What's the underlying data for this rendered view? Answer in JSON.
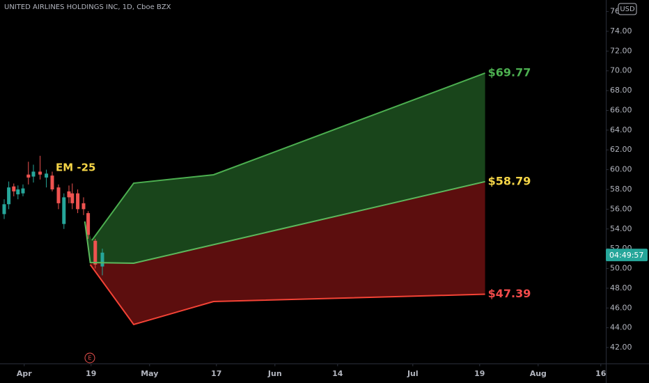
{
  "chart_data": {
    "type": "candlestick",
    "title": "UNITED AIRLINES HOLDINGS INC, 1D, Cboe BZX",
    "currency": "USD",
    "annotation": "EM -25",
    "annotation_color": "#f5d547",
    "countdown": "04:49:57",
    "last_price": 51.37,
    "event": {
      "x": 15.7,
      "label": "E"
    },
    "ylim": [
      40.38,
      77.17
    ],
    "yticks": [
      {
        "value": 42,
        "label": "42.00"
      },
      {
        "value": 44,
        "label": "44.00"
      },
      {
        "value": 46,
        "label": "46.00"
      },
      {
        "value": 48,
        "label": "48.00"
      },
      {
        "value": 50,
        "label": "50.00"
      },
      {
        "value": 52,
        "label": "52.00"
      },
      {
        "value": 54,
        "label": "54.00"
      },
      {
        "value": 56,
        "label": "56.00"
      },
      {
        "value": 58,
        "label": "58.00"
      },
      {
        "value": 60,
        "label": "60.00"
      },
      {
        "value": 62,
        "label": "62.00"
      },
      {
        "value": 64,
        "label": "64.00"
      },
      {
        "value": 66,
        "label": "66.00"
      },
      {
        "value": 68,
        "label": "68.00"
      },
      {
        "value": 70,
        "label": "70.00"
      },
      {
        "value": 72,
        "label": "72.00"
      },
      {
        "value": 74,
        "label": "74.00"
      },
      {
        "value": 76,
        "label": "76.00"
      }
    ],
    "xlim": [
      -5.8,
      139.2
    ],
    "xticks": [
      {
        "value": 0,
        "label": "Apr"
      },
      {
        "value": 16,
        "label": "19"
      },
      {
        "value": 30,
        "label": "May"
      },
      {
        "value": 46,
        "label": "17"
      },
      {
        "value": 60,
        "label": "Jun"
      },
      {
        "value": 75,
        "label": "14"
      },
      {
        "value": 93,
        "label": "Jul"
      },
      {
        "value": 109,
        "label": "19"
      },
      {
        "value": 123,
        "label": "Aug"
      },
      {
        "value": 138,
        "label": "16"
      }
    ],
    "candles": {
      "up_color": "#26a69a",
      "down_color": "#ef5350",
      "x": [
        -4.8,
        -3.7,
        -2.5,
        -1.5,
        -0.3,
        1.0,
        2.2,
        3.8,
        5.3,
        6.7,
        8.2,
        9.5,
        10.7,
        11.5,
        12.8,
        14.2,
        15.3,
        17.0,
        18.7
      ],
      "open": [
        55.5,
        56.5,
        58.3,
        57.5,
        57.6,
        59.5,
        59.3,
        59.8,
        59.2,
        59.4,
        58.2,
        54.5,
        57.8,
        57.6,
        57.6,
        56.6,
        55.6,
        52.8,
        50.2
      ],
      "high": [
        57.0,
        58.8,
        58.6,
        58.4,
        58.5,
        60.8,
        60.5,
        61.4,
        60.0,
        59.8,
        58.5,
        57.6,
        58.4,
        58.6,
        58.0,
        57.2,
        55.8,
        53.0,
        52.0
      ],
      "low": [
        55.0,
        56.0,
        57.3,
        57.0,
        57.3,
        58.5,
        58.7,
        59.0,
        58.2,
        57.8,
        56.0,
        54.0,
        56.6,
        56.0,
        55.6,
        55.4,
        53.0,
        50.0,
        49.3
      ],
      "close": [
        56.5,
        58.2,
        57.8,
        58.0,
        58.1,
        59.2,
        59.8,
        59.5,
        59.6,
        58.0,
        56.6,
        57.2,
        57.2,
        56.6,
        56.0,
        56.0,
        53.4,
        50.4,
        51.6
      ]
    },
    "series": [
      {
        "color": "#4caf50",
        "fill": "rgba(46,125,50,0.55)",
        "x": [
          16.2,
          26.2,
          45.3,
          110.3
        ],
        "values": [
          52.85,
          58.63,
          59.48,
          69.77
        ],
        "value_labels": [
          null,
          null,
          null,
          "$69.77"
        ],
        "label_color": "#4caf50"
      },
      {
        "color": "#5cb85c",
        "fill": "rgba(183,28,28,0.5)",
        "x": [
          14.5,
          15.8,
          26.2,
          110.3
        ],
        "values": [
          54.76,
          50.6,
          50.53,
          58.79
        ],
        "value_labels": [
          null,
          null,
          null,
          "$58.79"
        ],
        "label_color": "#f5d547"
      },
      {
        "color": "#f44336",
        "x": [
          15.8,
          26.2,
          45.3,
          110.3
        ],
        "values": [
          50.39,
          44.33,
          46.65,
          47.39
        ],
        "value_labels": [
          null,
          null,
          null,
          "$47.39"
        ],
        "label_color": "#f24b4b"
      }
    ]
  }
}
